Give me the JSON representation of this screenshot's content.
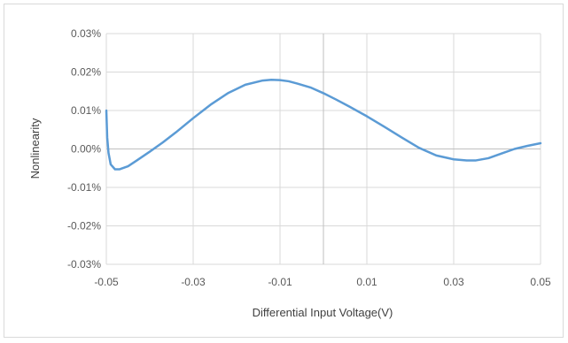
{
  "chart_data": {
    "type": "line",
    "title": "",
    "xlabel": "Differential Input Voltage(V)",
    "ylabel": "Nonlinearity",
    "xlim": [
      -0.05,
      0.05
    ],
    "ylim": [
      -0.03,
      0.03
    ],
    "x_ticks": [
      -0.05,
      -0.03,
      -0.01,
      0.01,
      0.03,
      0.05
    ],
    "x_tick_labels": [
      "-0.05",
      "-0.03",
      "-0.01",
      "0.01",
      "0.03",
      "0.05"
    ],
    "y_ticks": [
      -0.03,
      -0.02,
      -0.01,
      0.0,
      0.01,
      0.02,
      0.03
    ],
    "y_tick_labels": [
      "-0.03%",
      "-0.02%",
      "-0.01%",
      "0.00%",
      "0.01%",
      "0.02%",
      "0.03%"
    ],
    "grid": true,
    "legend": "none",
    "series": [
      {
        "color": "#5b9bd5",
        "x": [
          -0.05,
          -0.0498,
          -0.0495,
          -0.049,
          -0.048,
          -0.047,
          -0.045,
          -0.043,
          -0.04,
          -0.037,
          -0.034,
          -0.03,
          -0.026,
          -0.022,
          -0.018,
          -0.014,
          -0.012,
          -0.01,
          -0.008,
          -0.006,
          -0.003,
          0.0,
          0.003,
          0.006,
          0.01,
          0.014,
          0.018,
          0.022,
          0.026,
          0.03,
          0.033,
          0.035,
          0.038,
          0.041,
          0.044,
          0.047,
          0.05
        ],
        "y": [
          0.01,
          0.003,
          -0.001,
          -0.004,
          -0.0053,
          -0.0053,
          -0.0045,
          -0.003,
          -0.0007,
          0.0017,
          0.0043,
          0.008,
          0.0115,
          0.0145,
          0.0167,
          0.0178,
          0.018,
          0.0179,
          0.0176,
          0.017,
          0.016,
          0.0145,
          0.0128,
          0.011,
          0.0085,
          0.0058,
          0.003,
          0.0003,
          -0.0017,
          -0.0027,
          -0.003,
          -0.003,
          -0.0024,
          -0.0012,
          0.0,
          0.0008,
          0.0015
        ]
      }
    ]
  }
}
